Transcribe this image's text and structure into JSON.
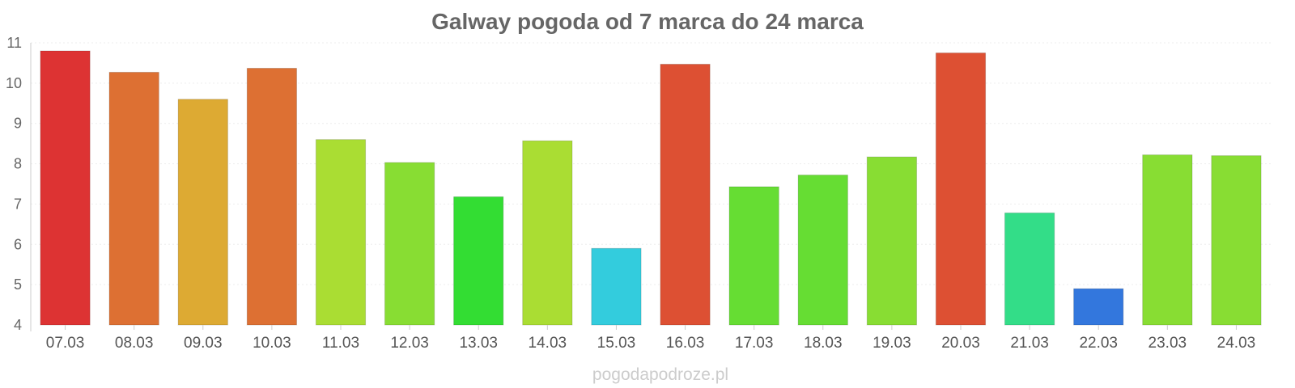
{
  "chart_data": {
    "type": "bar",
    "title": "Galway pogoda od 7 marca do 24 marca",
    "xlabel": "",
    "ylabel": "",
    "ylim": [
      4,
      11
    ],
    "yticks": [
      "4",
      "5",
      "6",
      "7",
      "8",
      "9",
      "10",
      "11"
    ],
    "categories": [
      "07.03",
      "08.03",
      "09.03",
      "10.03",
      "11.03",
      "12.03",
      "13.03",
      "14.03",
      "15.03",
      "16.03",
      "17.03",
      "18.03",
      "19.03",
      "20.03",
      "21.03",
      "22.03",
      "23.03",
      "24.03"
    ],
    "values": [
      10.8,
      10.27,
      9.6,
      10.37,
      8.6,
      8.03,
      7.18,
      8.57,
      5.9,
      10.47,
      7.43,
      7.72,
      8.17,
      10.75,
      6.78,
      4.9,
      8.22,
      8.2
    ],
    "colors": [
      "#dd3333",
      "#dd7033",
      "#ddaa33",
      "#dd7033",
      "#aadd33",
      "#88dd33",
      "#33dd33",
      "#aadd33",
      "#33ccdd",
      "#dd5033",
      "#66dd33",
      "#66dd33",
      "#88dd33",
      "#dd5033",
      "#33dd88",
      "#3377dd",
      "#88dd33",
      "#88dd33"
    ],
    "grid": true,
    "legend": "none"
  },
  "footer": {
    "credit": "pogodapodroze.pl"
  }
}
